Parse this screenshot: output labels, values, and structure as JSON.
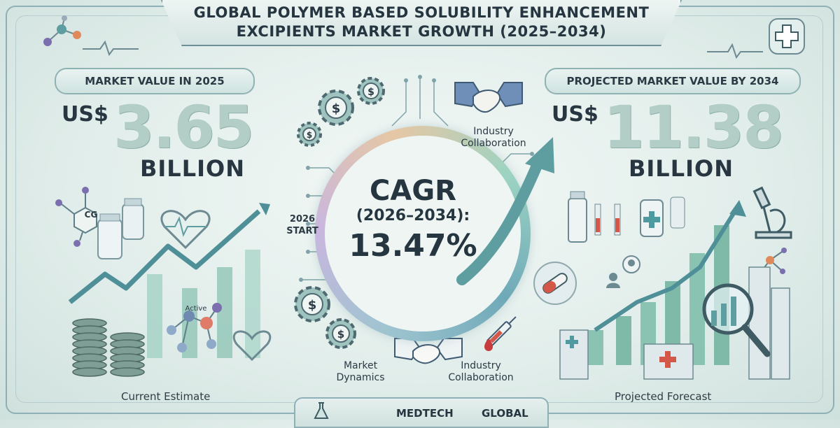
{
  "header": {
    "title_line1": "GLOBAL POLYMER BASED SOLUBILITY ENHANCEMENT",
    "title_line2": "EXCIPIENTS MARKET GROWTH (2025–2034)"
  },
  "left_panel": {
    "pill": "MARKET VALUE IN 2025",
    "currency": "US$",
    "value": "3.65",
    "unit": "BILLION",
    "molecule_label": "CG",
    "active_label": "Active",
    "caption": "Current Estimate"
  },
  "right_panel": {
    "pill": "PROJECTED MARKET VALUE BY 2034",
    "currency": "US$",
    "value": "11.38",
    "unit": "BILLION",
    "caption": "Projected Forecast"
  },
  "center": {
    "cagr_label": "CAGR",
    "cagr_period": "(2026–2034):",
    "cagr_value": "13.47%",
    "start_line1": "2026",
    "start_line2": "START",
    "top_label_line1": "Industry",
    "top_label_line2": "Collaboration",
    "bottom_left_line1": "Market",
    "bottom_left_line2": "Dynamics",
    "bottom_right_line1": "Industry",
    "bottom_right_line2": "Collaboration"
  },
  "footer": {
    "word_left": "MEDTECH",
    "word_right": "GLOBAL"
  },
  "icons": [
    "molecule-icon",
    "heartbeat-icon",
    "medical-cross-icon",
    "gear-dollar-icon",
    "handshake-icon",
    "syringe-icon",
    "microscope-icon",
    "magnifier-icon",
    "coin-stack-icon",
    "hospital-icon",
    "pill-icon"
  ],
  "colors": {
    "accent_teal": "#5f9ea0",
    "arrow_teal": "#4f9aa0",
    "frame": "#8fb0b6",
    "number_fill": "#b3cdc7"
  }
}
